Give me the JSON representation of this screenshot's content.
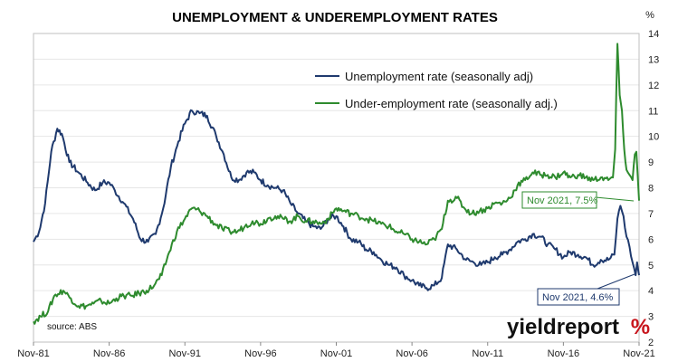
{
  "chart_data": {
    "type": "line",
    "title": "UNEMPLOYMENT & UNDEREMPLOYMENT RATES",
    "ylabel": "%",
    "y_axis_side": "right",
    "ylim": [
      2,
      14
    ],
    "yticks": [
      2,
      3,
      4,
      5,
      6,
      7,
      8,
      9,
      10,
      11,
      12,
      13,
      14
    ],
    "xlim": [
      1981.83,
      2021.83
    ],
    "x_tick_labels": [
      "Nov-81",
      "Nov-86",
      "Nov-91",
      "Nov-96",
      "Nov-01",
      "Nov-06",
      "Nov-11",
      "Nov-16",
      "Nov-21"
    ],
    "x_tick_values": [
      1981.83,
      1986.83,
      1991.83,
      1996.83,
      2001.83,
      2006.83,
      2011.83,
      2016.83,
      2021.83
    ],
    "grid": "horizontal",
    "legend_position": "top-center",
    "series": [
      {
        "name": "Unemployment rate (seasonally adj)",
        "color": "#1f3a6e",
        "x": [
          1981.83,
          1982.2,
          1982.6,
          1983.0,
          1983.4,
          1983.7,
          1984.2,
          1984.8,
          1985.4,
          1985.9,
          1986.4,
          1986.83,
          1987.2,
          1987.8,
          1988.4,
          1988.9,
          1989.4,
          1989.9,
          1990.4,
          1990.9,
          1991.4,
          1991.83,
          1992.3,
          1992.8,
          1993.3,
          1993.9,
          1994.4,
          1994.9,
          1995.4,
          1995.9,
          1996.4,
          1996.83,
          1997.3,
          1997.8,
          1998.3,
          1998.8,
          1999.3,
          1999.8,
          2000.3,
          2000.8,
          2001.3,
          2001.83,
          2002.3,
          2002.8,
          2003.3,
          2003.8,
          2004.3,
          2004.8,
          2005.3,
          2005.8,
          2006.3,
          2006.83,
          2007.3,
          2007.8,
          2008.3,
          2008.8,
          2009.2,
          2009.8,
          2010.4,
          2010.9,
          2011.4,
          2011.83,
          2012.3,
          2012.8,
          2013.3,
          2013.8,
          2014.3,
          2014.8,
          2015.3,
          2015.8,
          2016.3,
          2016.83,
          2017.3,
          2017.8,
          2018.3,
          2018.8,
          2019.3,
          2019.8,
          2020.2,
          2020.4,
          2020.6,
          2020.8,
          2021.0,
          2021.2,
          2021.4,
          2021.6,
          2021.7,
          2021.83
        ],
        "values": [
          5.9,
          6.3,
          7.4,
          9.4,
          10.3,
          10.1,
          9.0,
          8.6,
          8.2,
          7.9,
          8.2,
          8.2,
          7.9,
          7.4,
          6.8,
          6.0,
          5.9,
          6.2,
          7.2,
          8.8,
          9.8,
          10.5,
          11.0,
          10.9,
          10.8,
          10.0,
          9.3,
          8.4,
          8.3,
          8.6,
          8.6,
          8.3,
          8.1,
          8.0,
          7.9,
          7.4,
          7.0,
          6.7,
          6.5,
          6.4,
          6.8,
          6.9,
          6.5,
          6.0,
          5.9,
          5.6,
          5.5,
          5.2,
          5.0,
          4.9,
          4.6,
          4.4,
          4.2,
          4.1,
          4.2,
          4.5,
          5.8,
          5.6,
          5.2,
          5.1,
          5.0,
          5.1,
          5.3,
          5.4,
          5.6,
          5.9,
          6.0,
          6.2,
          6.1,
          5.8,
          5.6,
          5.3,
          5.5,
          5.4,
          5.3,
          5.0,
          5.2,
          5.2,
          5.4,
          6.8,
          7.3,
          6.9,
          6.1,
          5.7,
          5.1,
          4.6,
          5.1,
          4.6
        ]
      },
      {
        "name": "Under-employment rate (seasonally adj.)",
        "color": "#2e8b2e",
        "x": [
          1981.83,
          1982.3,
          1982.8,
          1983.2,
          1983.8,
          1984.3,
          1984.8,
          1985.3,
          1985.8,
          1986.3,
          1986.83,
          1987.3,
          1987.8,
          1988.3,
          1988.8,
          1989.3,
          1989.8,
          1990.3,
          1990.8,
          1991.3,
          1991.83,
          1992.3,
          1992.8,
          1993.3,
          1993.8,
          1994.3,
          1994.8,
          1995.3,
          1995.8,
          1996.3,
          1996.83,
          1997.3,
          1997.8,
          1998.3,
          1998.8,
          1999.3,
          1999.8,
          2000.3,
          2000.8,
          2001.3,
          2001.83,
          2002.3,
          2002.8,
          2003.3,
          2003.8,
          2004.3,
          2004.8,
          2005.3,
          2005.8,
          2006.3,
          2006.83,
          2007.3,
          2007.8,
          2008.3,
          2008.8,
          2009.2,
          2009.8,
          2010.3,
          2010.8,
          2011.3,
          2011.83,
          2012.3,
          2012.8,
          2013.3,
          2013.8,
          2014.3,
          2014.8,
          2015.3,
          2015.8,
          2016.3,
          2016.83,
          2017.3,
          2017.8,
          2018.3,
          2018.8,
          2019.3,
          2019.8,
          2020.1,
          2020.25,
          2020.4,
          2020.55,
          2020.7,
          2020.85,
          2021.0,
          2021.2,
          2021.4,
          2021.55,
          2021.65,
          2021.83
        ],
        "values": [
          2.8,
          3.0,
          3.2,
          3.8,
          4.0,
          3.7,
          3.4,
          3.4,
          3.5,
          3.6,
          3.5,
          3.7,
          3.8,
          3.8,
          3.9,
          4.0,
          4.2,
          4.6,
          5.5,
          6.3,
          6.8,
          7.2,
          7.1,
          6.9,
          6.6,
          6.4,
          6.3,
          6.3,
          6.5,
          6.7,
          6.6,
          6.8,
          6.9,
          6.8,
          6.7,
          6.9,
          6.7,
          6.7,
          6.6,
          6.8,
          7.2,
          7.1,
          7.0,
          6.9,
          6.8,
          6.7,
          6.6,
          6.5,
          6.3,
          6.2,
          6.0,
          5.9,
          5.8,
          6.0,
          6.4,
          7.5,
          7.6,
          7.2,
          7.0,
          7.1,
          7.2,
          7.4,
          7.4,
          7.6,
          8.1,
          8.3,
          8.6,
          8.5,
          8.5,
          8.4,
          8.6,
          8.4,
          8.5,
          8.4,
          8.3,
          8.4,
          8.3,
          8.4,
          9.5,
          13.6,
          11.6,
          11.0,
          9.5,
          8.7,
          8.5,
          8.3,
          9.3,
          9.4,
          7.5
        ]
      }
    ],
    "annotations": [
      {
        "text": "Nov 2021, 7.5%",
        "series": 1,
        "x": 2021.83,
        "y": 7.5
      },
      {
        "text": "Nov 2021, 4.6%",
        "series": 0,
        "x": 2021.83,
        "y": 4.6
      }
    ],
    "source_note": "source: ABS"
  },
  "brand": {
    "main": "yieldreport",
    "suffix": "%",
    "accent_color": "#c8161d"
  }
}
